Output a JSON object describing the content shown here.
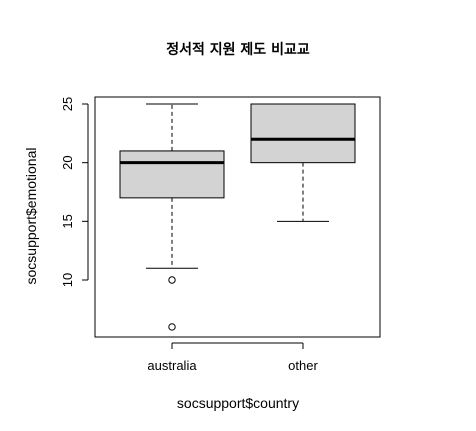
{
  "chart_data": {
    "type": "box",
    "title": "정서적 지원 제도 비교교",
    "xlabel": "socsupport$country",
    "ylabel": "socsupport$emotional",
    "categories": [
      "australia",
      "other"
    ],
    "ylim": [
      5,
      26
    ],
    "yticks": [
      10,
      15,
      20,
      25
    ],
    "boxes": [
      {
        "category": "australia",
        "min": 11,
        "q1": 17,
        "median": 20,
        "q3": 21,
        "max": 25,
        "outliers": [
          10,
          6
        ]
      },
      {
        "category": "other",
        "min": 15,
        "q1": 20,
        "median": 22,
        "q3": 25,
        "max": 25,
        "outliers": []
      }
    ],
    "box_fill": "#d3d3d3",
    "grid": false,
    "legend": "none"
  }
}
